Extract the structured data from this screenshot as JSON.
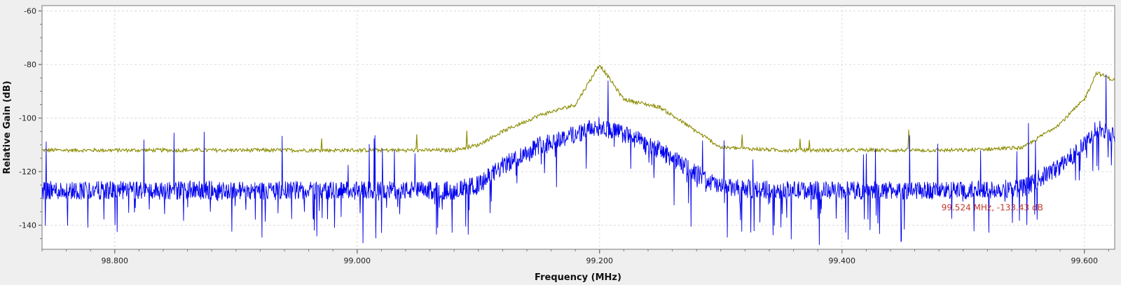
{
  "chart_data": {
    "type": "line",
    "title": "",
    "xlabel": "Frequency (MHz)",
    "ylabel": "Relative Gain (dB)",
    "xlim": [
      98.74,
      99.625
    ],
    "ylim": [
      -149,
      -58
    ],
    "x_ticks": [
      98.8,
      99.0,
      99.2,
      99.4,
      99.6
    ],
    "x_tick_labels": [
      "98.800",
      "99.000",
      "99.200",
      "99.400",
      "99.600"
    ],
    "y_ticks": [
      -60,
      -80,
      -100,
      -120,
      -140
    ],
    "y_tick_labels": [
      "-60",
      "-80",
      "-100",
      "-120",
      "-140"
    ],
    "grid": true,
    "series": [
      {
        "color": "#8b8b00",
        "x": [
          98.74,
          98.8,
          98.9,
          99.0,
          99.08,
          99.1,
          99.12,
          99.15,
          99.18,
          99.2,
          99.22,
          99.25,
          99.27,
          99.3,
          99.35,
          99.4,
          99.5,
          99.55,
          99.58,
          99.6,
          99.61,
          99.625
        ],
        "values": [
          -112,
          -112,
          -112,
          -112,
          -112,
          -110,
          -105,
          -99,
          -95,
          -80,
          -93,
          -96,
          -102,
          -111,
          -112,
          -112,
          -112,
          -111,
          -102,
          -93,
          -83,
          -86
        ]
      },
      {
        "color": "#0000ee",
        "x": [
          98.74,
          98.8,
          98.9,
          99.0,
          99.08,
          99.1,
          99.12,
          99.15,
          99.18,
          99.2,
          99.22,
          99.25,
          99.27,
          99.3,
          99.35,
          99.4,
          99.5,
          99.55,
          99.58,
          99.6,
          99.61,
          99.625
        ],
        "values": [
          -127,
          -127,
          -127,
          -127,
          -127,
          -125,
          -118,
          -110,
          -106,
          -103,
          -106,
          -112,
          -118,
          -126,
          -127,
          -127,
          -127,
          -126,
          -118,
          -110,
          -104,
          -106
        ]
      }
    ],
    "marker": {
      "text": "99.524 MHz, -133.43 dB",
      "x": 99.524,
      "y": -133.43
    }
  }
}
